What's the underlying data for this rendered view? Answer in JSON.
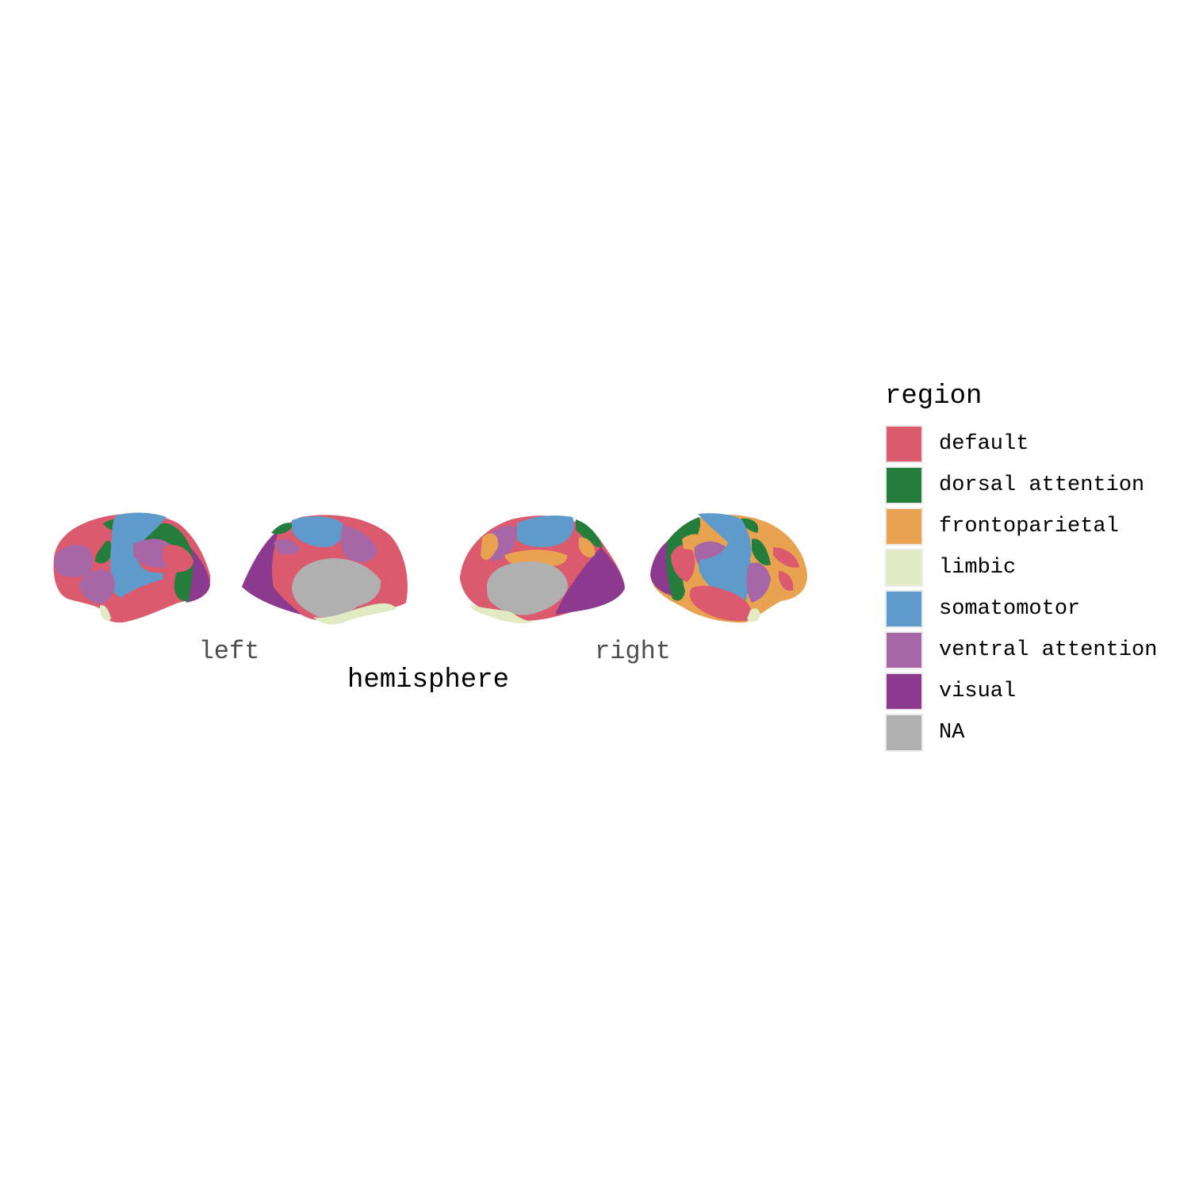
{
  "plot": {
    "x_title": "hemisphere",
    "x_labels": [
      "left",
      "right"
    ]
  },
  "legend": {
    "title": "region",
    "items": [
      {
        "label": "default",
        "color": "#DB5A6E"
      },
      {
        "label": "dorsal attention",
        "color": "#257D3C"
      },
      {
        "label": "frontoparietal",
        "color": "#E9A350"
      },
      {
        "label": "limbic",
        "color": "#E0EAC3"
      },
      {
        "label": "somatomotor",
        "color": "#5F9BCA"
      },
      {
        "label": "ventral attention",
        "color": "#A767A6"
      },
      {
        "label": "visual",
        "color": "#8C3A8F"
      },
      {
        "label": "NA",
        "color": "#B0B0B0"
      }
    ]
  }
}
